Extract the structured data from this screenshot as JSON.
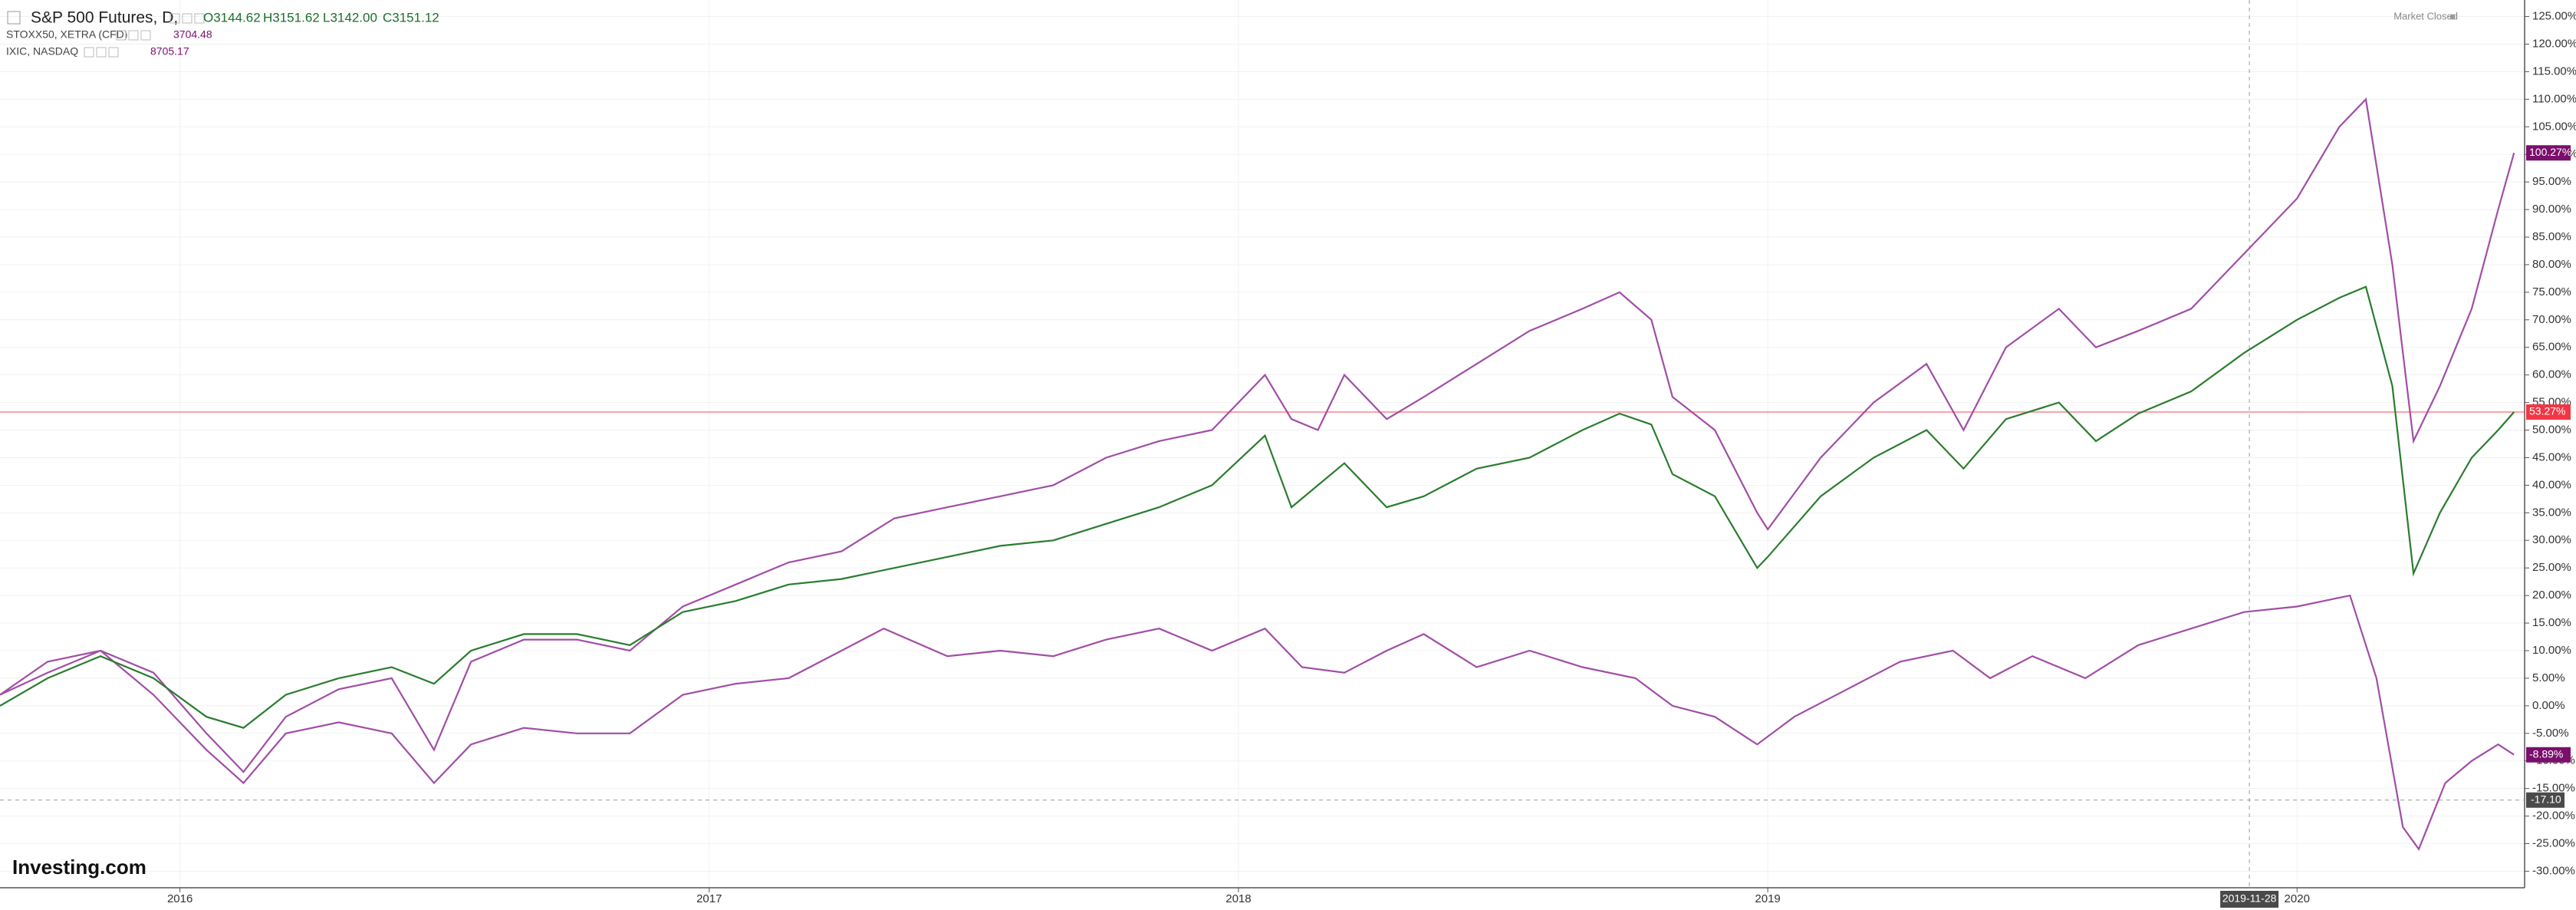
{
  "chart_data": {
    "type": "line",
    "legend": {
      "main_name": "S&P 500 Futures, D,",
      "ohlc": [
        "O3144.62",
        "H3151.62",
        "L3142.00",
        "C3151.12"
      ]
    },
    "status": "Market Closed",
    "watermark": "Investing.com",
    "series": [
      {
        "name": "STOXX50, XETRA (CFD)",
        "last_price": "3704.48",
        "color": "#a14ea6",
        "label_color": "#7a0f6c",
        "x": [
          2015.66,
          2015.75,
          2015.85,
          2015.95,
          2016.05,
          2016.12,
          2016.2,
          2016.3,
          2016.4,
          2016.48,
          2016.55,
          2016.65,
          2016.75,
          2016.85,
          2016.95,
          2017.05,
          2017.15,
          2017.25,
          2017.33,
          2017.45,
          2017.55,
          2017.65,
          2017.75,
          2017.85,
          2017.95,
          2018.05,
          2018.12,
          2018.2,
          2018.28,
          2018.35,
          2018.45,
          2018.55,
          2018.65,
          2018.75,
          2018.82,
          2018.9,
          2018.98,
          2019.05,
          2019.15,
          2019.25,
          2019.35,
          2019.42,
          2019.5,
          2019.6,
          2019.7,
          2019.8,
          2019.9,
          2020.0,
          2020.05,
          2020.1,
          2020.15,
          2020.2,
          2020.23,
          2020.28,
          2020.33,
          2020.38,
          2020.41
        ],
        "values": [
          2,
          6,
          10,
          2,
          -8,
          -14,
          -5,
          -3,
          -5,
          -14,
          -7,
          -4,
          -5,
          -5,
          2,
          4,
          5,
          10,
          14,
          9,
          10,
          9,
          12,
          14,
          10,
          14,
          7,
          6,
          10,
          13,
          7,
          10,
          7,
          5,
          0,
          -2,
          -7,
          -2,
          3,
          8,
          10,
          5,
          9,
          5,
          11,
          14,
          17,
          18,
          19,
          20,
          5,
          -22,
          -26,
          -14,
          -10,
          -7,
          -8.89
        ],
        "last_label": {
          "value": -8.89,
          "label": "-8.89%"
        }
      },
      {
        "name": "IXIC, NASDAQ",
        "last_price": "8705.17",
        "color": "#a14ea6",
        "label_color": "#7a0f6c",
        "x": [
          2015.66,
          2015.75,
          2015.85,
          2015.95,
          2016.05,
          2016.12,
          2016.2,
          2016.3,
          2016.4,
          2016.48,
          2016.55,
          2016.65,
          2016.75,
          2016.85,
          2016.95,
          2017.05,
          2017.15,
          2017.25,
          2017.35,
          2017.45,
          2017.55,
          2017.65,
          2017.75,
          2017.85,
          2017.95,
          2018.05,
          2018.1,
          2018.15,
          2018.2,
          2018.28,
          2018.35,
          2018.45,
          2018.55,
          2018.65,
          2018.72,
          2018.78,
          2018.82,
          2018.9,
          2018.98,
          2019.0,
          2019.1,
          2019.2,
          2019.3,
          2019.37,
          2019.45,
          2019.55,
          2019.62,
          2019.7,
          2019.8,
          2019.9,
          2020.0,
          2020.08,
          2020.13,
          2020.18,
          2020.22,
          2020.27,
          2020.33,
          2020.38,
          2020.41
        ],
        "values": [
          2,
          8,
          10,
          6,
          -5,
          -12,
          -2,
          3,
          5,
          -8,
          8,
          12,
          12,
          10,
          18,
          22,
          26,
          28,
          34,
          36,
          38,
          40,
          45,
          48,
          50,
          60,
          52,
          50,
          60,
          52,
          56,
          62,
          68,
          72,
          75,
          70,
          56,
          50,
          35,
          32,
          45,
          55,
          62,
          50,
          65,
          72,
          65,
          68,
          72,
          82,
          92,
          105,
          110,
          80,
          48,
          58,
          72,
          90,
          100.27
        ],
        "last_label": {
          "value": 100.27,
          "label": "100.27%"
        }
      },
      {
        "name": "S&P 500 Futures",
        "color": "#2a7d2e",
        "label_color": "#f23645",
        "x": [
          2015.66,
          2015.75,
          2015.85,
          2015.95,
          2016.05,
          2016.12,
          2016.2,
          2016.3,
          2016.4,
          2016.48,
          2016.55,
          2016.65,
          2016.75,
          2016.85,
          2016.95,
          2017.05,
          2017.15,
          2017.25,
          2017.35,
          2017.45,
          2017.55,
          2017.65,
          2017.75,
          2017.85,
          2017.95,
          2018.05,
          2018.1,
          2018.15,
          2018.2,
          2018.28,
          2018.35,
          2018.45,
          2018.55,
          2018.65,
          2018.72,
          2018.78,
          2018.82,
          2018.9,
          2018.98,
          2019.0,
          2019.1,
          2019.2,
          2019.3,
          2019.37,
          2019.45,
          2019.55,
          2019.62,
          2019.7,
          2019.8,
          2019.9,
          2020.0,
          2020.08,
          2020.13,
          2020.18,
          2020.22,
          2020.27,
          2020.33,
          2020.38,
          2020.41
        ],
        "values": [
          0,
          5,
          9,
          5,
          -2,
          -4,
          2,
          5,
          7,
          4,
          10,
          13,
          13,
          11,
          17,
          19,
          22,
          23,
          25,
          27,
          29,
          30,
          33,
          36,
          40,
          49,
          36,
          40,
          44,
          36,
          38,
          43,
          45,
          50,
          53,
          51,
          42,
          38,
          25,
          27,
          38,
          45,
          50,
          43,
          52,
          55,
          48,
          53,
          57,
          64,
          70,
          74,
          76,
          58,
          24,
          35,
          45,
          50,
          53.27
        ],
        "last_label": {
          "value": 53.27,
          "label": "53.27%"
        }
      }
    ],
    "xlim": [
      2015.66,
      2020.43
    ],
    "xticks": [
      2016,
      2017,
      2018,
      2019,
      2020
    ],
    "ylim": [
      -33,
      128
    ],
    "yticks": [
      {
        "value": 125,
        "label": "125.00%"
      },
      {
        "value": 120,
        "label": "120.00%"
      },
      {
        "value": 115,
        "label": "115.00%"
      },
      {
        "value": 110,
        "label": "110.00%"
      },
      {
        "value": 105,
        "label": "105.00%"
      },
      {
        "value": 100,
        "label": "100.00%"
      },
      {
        "value": 95,
        "label": "95.00%"
      },
      {
        "value": 90,
        "label": "90.00%"
      },
      {
        "value": 85,
        "label": "85.00%"
      },
      {
        "value": 80,
        "label": "80.00%"
      },
      {
        "value": 75,
        "label": "75.00%"
      },
      {
        "value": 70,
        "label": "70.00%"
      },
      {
        "value": 65,
        "label": "65.00%"
      },
      {
        "value": 60,
        "label": "60.00%"
      },
      {
        "value": 55,
        "label": "55.00%"
      },
      {
        "value": 50,
        "label": "50.00%"
      },
      {
        "value": 45,
        "label": "45.00%"
      },
      {
        "value": 40,
        "label": "40.00%"
      },
      {
        "value": 35,
        "label": "35.00%"
      },
      {
        "value": 30,
        "label": "30.00%"
      },
      {
        "value": 25,
        "label": "25.00%"
      },
      {
        "value": 20,
        "label": "20.00%"
      },
      {
        "value": 15,
        "label": "15.00%"
      },
      {
        "value": 10,
        "label": "10.00%"
      },
      {
        "value": 5,
        "label": "5.00%"
      },
      {
        "value": 0,
        "label": "0.00%"
      },
      {
        "value": -5,
        "label": "-5.00%"
      },
      {
        "value": -10,
        "label": "-10.00%"
      },
      {
        "value": -15,
        "label": "-15.00%"
      },
      {
        "value": -20,
        "label": "-20.00%"
      },
      {
        "value": -25,
        "label": "-25.00%"
      },
      {
        "value": -30,
        "label": "-30.00%"
      }
    ],
    "grid": true,
    "crosshair": {
      "x": {
        "value": 2019.91,
        "label": "2019-11-28"
      },
      "y": {
        "value": -17.1,
        "label": "-17.10"
      }
    }
  }
}
